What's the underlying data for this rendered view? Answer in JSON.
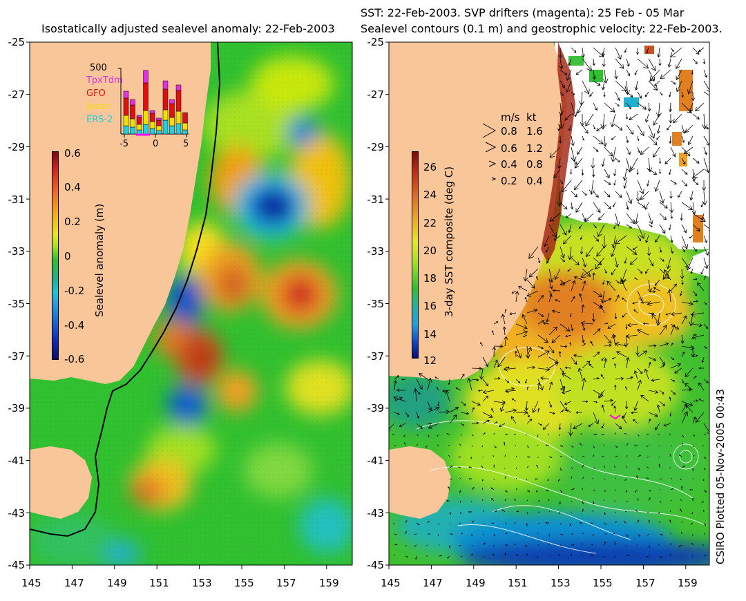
{
  "left_panel": {
    "title": "Isostatically adjusted sealevel anomaly: 22-Feb-2003",
    "colorbar": {
      "label": "Sealevel anomaly (m)",
      "ticks": [
        "0.6",
        "0.4",
        "0.2",
        "0",
        "-0.2",
        "-0.4",
        "-0.6"
      ]
    },
    "inset": {
      "ytick": "500",
      "xticks": [
        "-5",
        "0",
        "5"
      ],
      "satellites": [
        {
          "name": "TpxTdm",
          "color": "#e030e0"
        },
        {
          "name": "GFO",
          "color": "#e01010"
        },
        {
          "name": "Jason",
          "color": "#f0e000"
        },
        {
          "name": "ERS-2",
          "color": "#20d0e0"
        }
      ]
    }
  },
  "right_panel": {
    "title_line1": "SST: 22-Feb-2003. SVP drifters (magenta): 25 Feb - 05 Mar",
    "title_line2": "Sealevel contours (0.1 m) and geostrophic velocity: 22-Feb-2003.",
    "colorbar": {
      "label": "3-day SST composite (deg C)",
      "ticks": [
        "26",
        "24",
        "22",
        "20",
        "18",
        "16",
        "14",
        "12"
      ]
    },
    "velocity_legend": {
      "header_ms": "m/s",
      "header_kt": "kt",
      "rows": [
        {
          "ms": "0.8",
          "kt": "1.6"
        },
        {
          "ms": "0.6",
          "kt": "1.2"
        },
        {
          "ms": "0.4",
          "kt": "0.8"
        },
        {
          "ms": "0.2",
          "kt": "0.4"
        }
      ]
    }
  },
  "axes": {
    "lat_ticks": [
      "-25",
      "-27",
      "-29",
      "-31",
      "-33",
      "-35",
      "-37",
      "-39",
      "-41",
      "-43",
      "-45"
    ],
    "lon_ticks": [
      "145",
      "147",
      "149",
      "151",
      "153",
      "155",
      "157",
      "159"
    ]
  },
  "credit": "CSIRO Plotted 05-Nov-2005 00:43",
  "colors": {
    "land": "#f9c69a",
    "cloud": "#ffffff",
    "coast_200m": "#000000",
    "drifters": "#ff00ff"
  }
}
